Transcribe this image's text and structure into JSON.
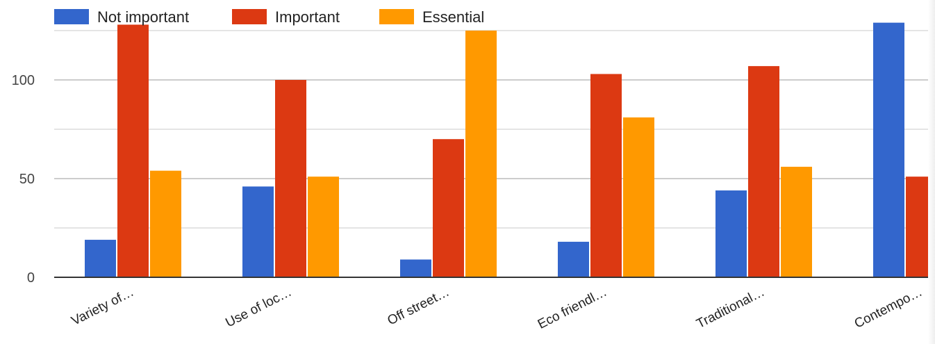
{
  "chart_data": {
    "type": "bar",
    "categories": [
      "Variety of…",
      "Use of loc…",
      "Off street…",
      "Eco friendl…",
      "Traditional…",
      "Contempo…"
    ],
    "series": [
      {
        "name": "Not important",
        "color": "#3366cc",
        "values": [
          19,
          46,
          9,
          18,
          44,
          129
        ]
      },
      {
        "name": "Important",
        "color": "#dc3912",
        "values": [
          128,
          100,
          70,
          103,
          107,
          51
        ]
      },
      {
        "name": "Essential",
        "color": "#ff9900",
        "values": [
          54,
          51,
          125,
          81,
          56,
          null
        ]
      }
    ],
    "yticks": [
      0,
      50,
      100
    ],
    "ylim": [
      0,
      130
    ],
    "grid": true,
    "legend": "top-left"
  }
}
